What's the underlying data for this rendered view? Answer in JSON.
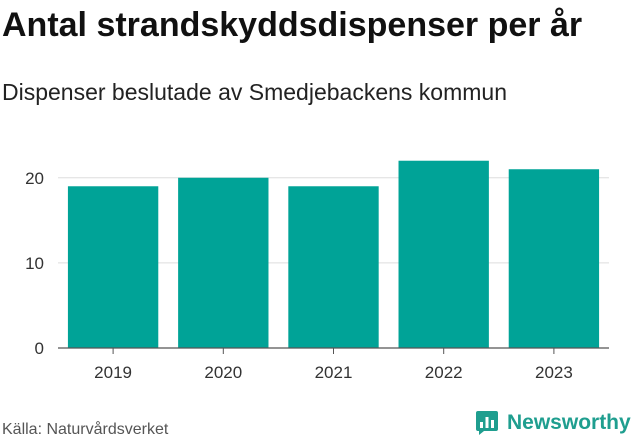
{
  "header": {
    "title": "Antal strandskyddsdispenser per år",
    "subtitle": "Dispenser beslutade av Smedjebackens kommun"
  },
  "footer": {
    "source": "Källa: Naturvårdsverket",
    "brand": "Newsworthy"
  },
  "colors": {
    "bar": "#00a397",
    "grid": "#dddddd",
    "axis": "#555555",
    "brand": "#1f9e8f"
  },
  "chart_data": {
    "type": "bar",
    "title": "Antal strandskyddsdispenser per år",
    "subtitle": "Dispenser beslutade av Smedjebackens kommun",
    "categories": [
      "2019",
      "2020",
      "2021",
      "2022",
      "2023"
    ],
    "values": [
      19,
      20,
      19,
      22,
      21
    ],
    "xlabel": "",
    "ylabel": "",
    "ylim": [
      0,
      24.2
    ],
    "yticks": [
      0,
      10,
      20
    ],
    "grid": true,
    "legend": "none"
  }
}
